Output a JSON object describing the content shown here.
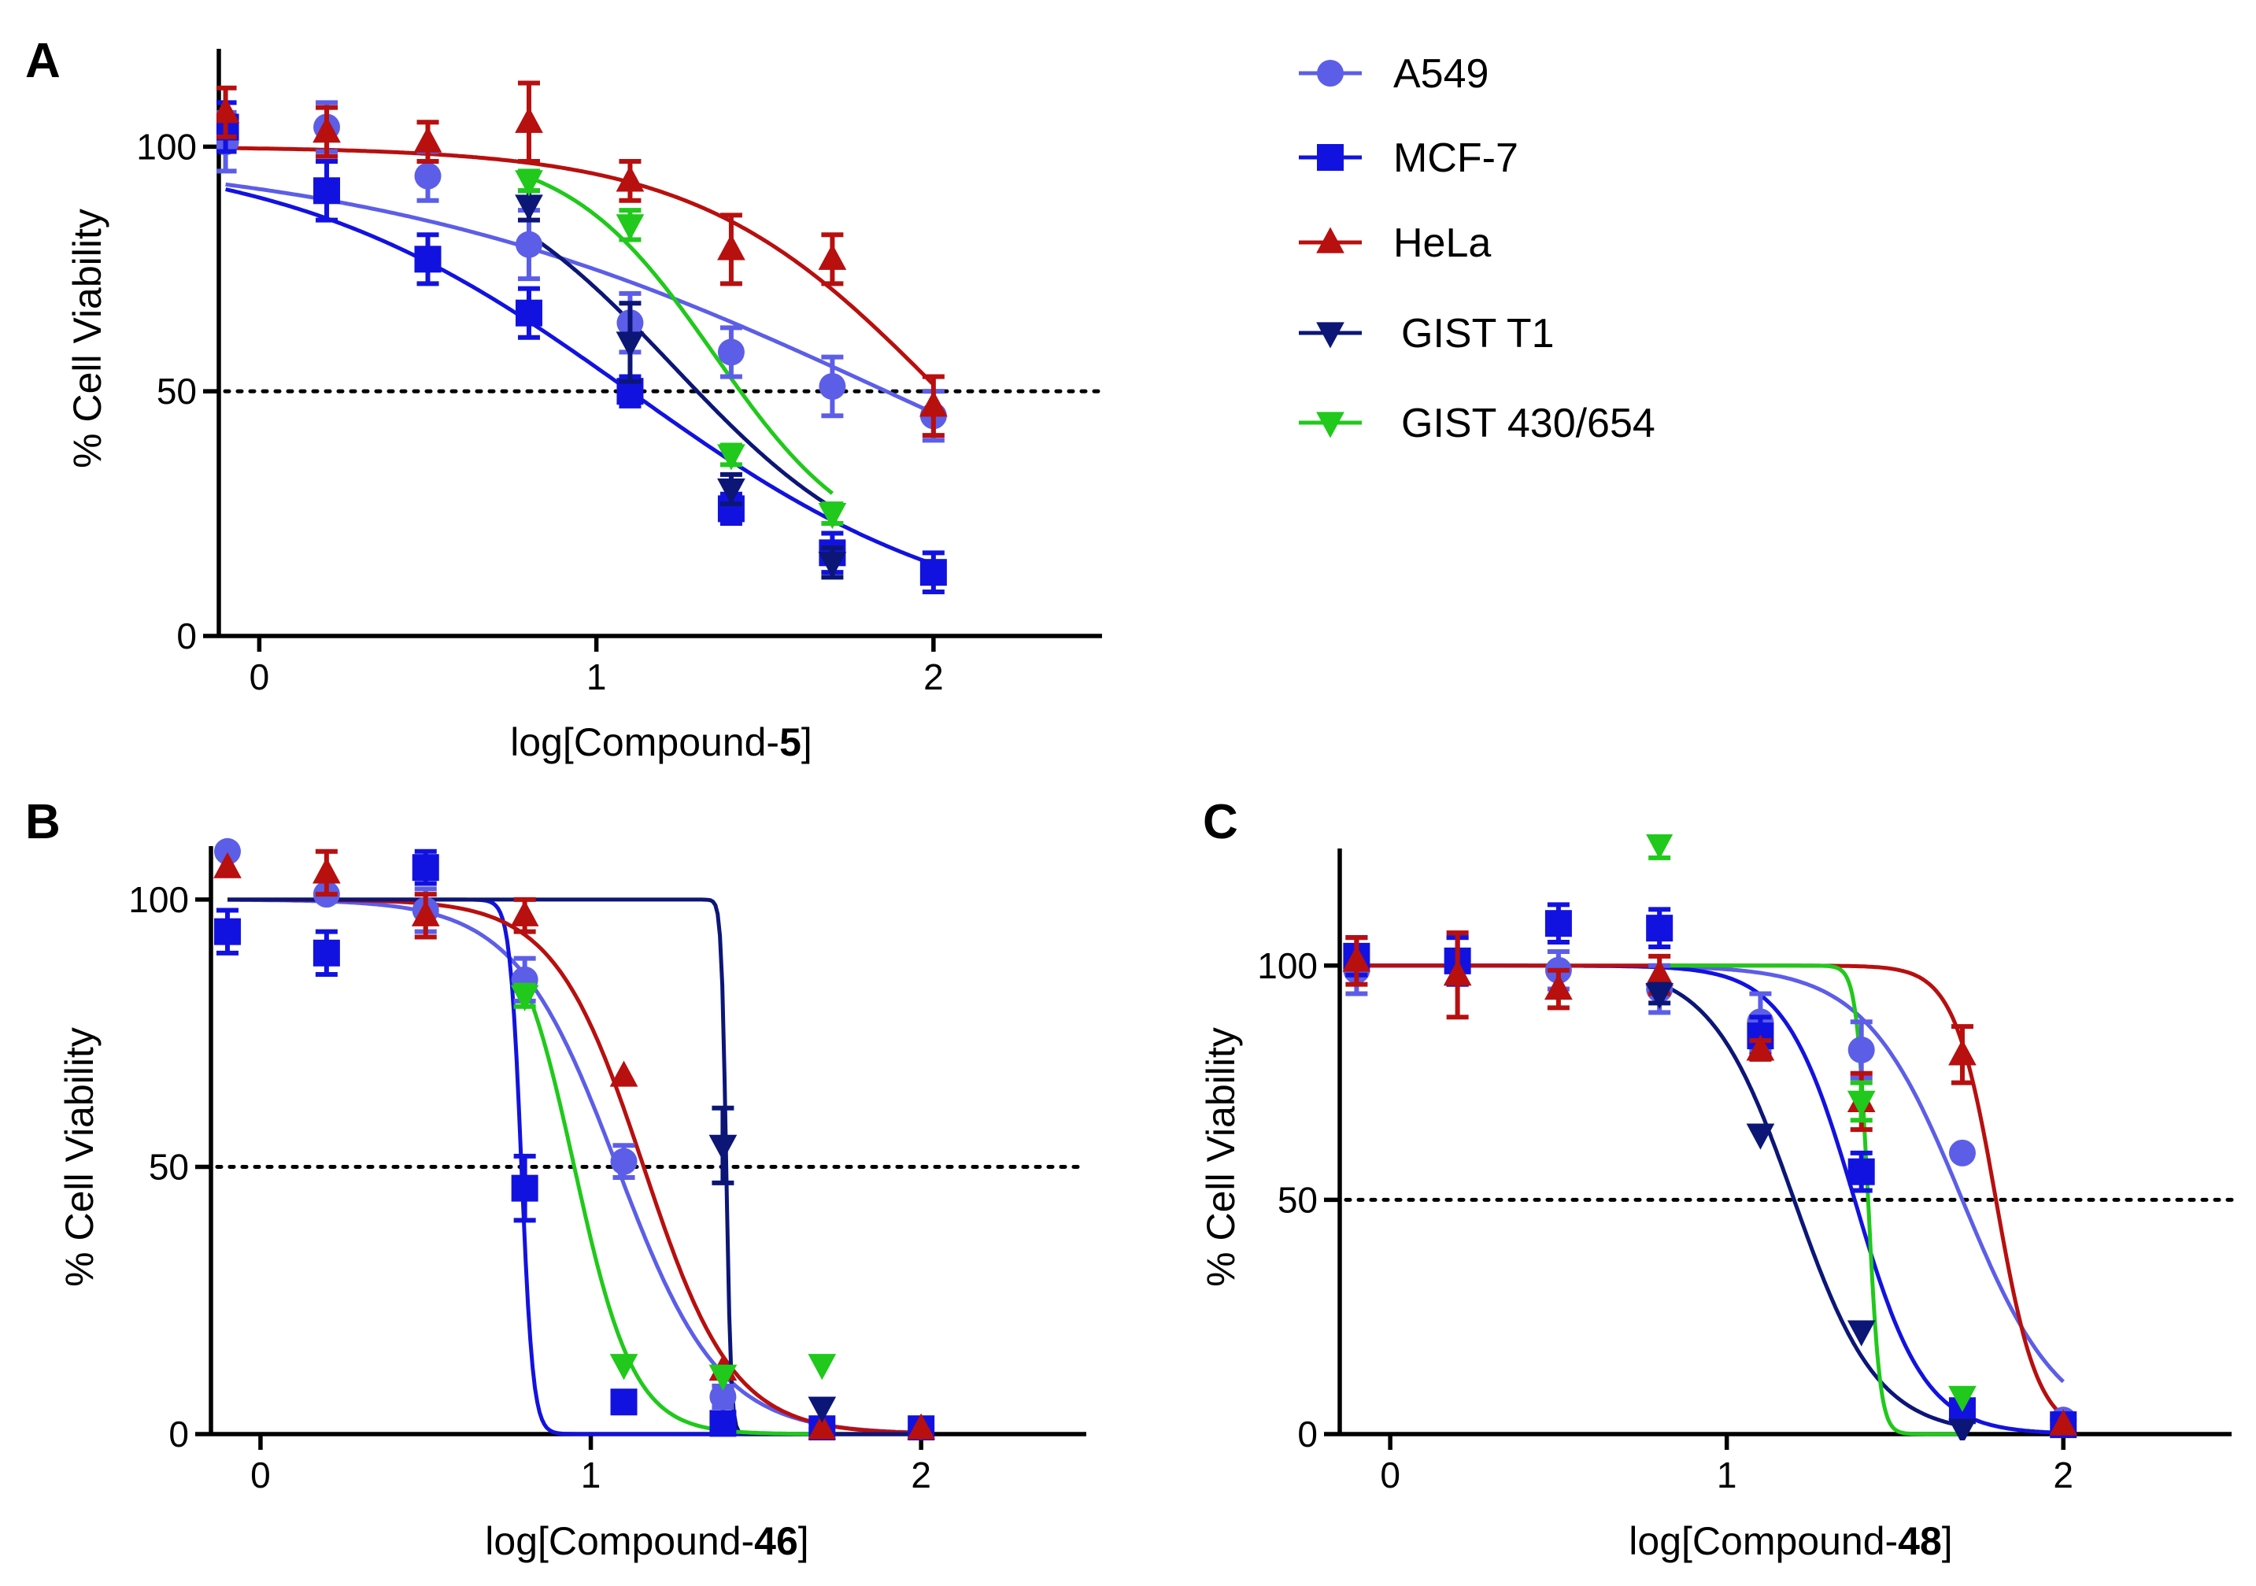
{
  "legend": {
    "entries": [
      {
        "name": "A549",
        "color": "#5c5ee8",
        "marker": "circle"
      },
      {
        "name": "MCF-7",
        "color": "#1212e0",
        "marker": "square"
      },
      {
        "name": "HeLa",
        "color": "#b80f0f",
        "marker": "triangle-up"
      },
      {
        "name": "GIST T1",
        "color": "#0c1677",
        "marker": "triangle-down"
      },
      {
        "name": "GIST 430/654",
        "color": "#20c91b",
        "marker": "triangle-down"
      }
    ]
  },
  "chart_data": [
    {
      "panel": "A",
      "type": "scatter",
      "xlabel_prefix": "log[Compound-",
      "xlabel_bold": "5",
      "xlabel_suffix": "]",
      "ylabel": "% Cell Viability",
      "xlim": [
        -0.12,
        2.5
      ],
      "ylim": [
        0,
        120
      ],
      "xticks": [
        0,
        1,
        2
      ],
      "yticks": [
        0,
        50,
        100
      ],
      "reference_line": 50,
      "series": [
        {
          "name": "A549",
          "x": [
            -0.1,
            0.2,
            0.5,
            0.8,
            1.1,
            1.4,
            1.7,
            2.0
          ],
          "y": [
            101,
            104,
            94,
            80,
            64,
            58,
            51,
            45
          ],
          "err": [
            6,
            5,
            5,
            7,
            6,
            5,
            6,
            5
          ],
          "fit": {
            "bottom": 0,
            "top": 100,
            "logIC50": 1.86,
            "hill": 0.55,
            "x_range": [
              -0.1,
              2.0
            ]
          }
        },
        {
          "name": "MCF-7",
          "x": [
            -0.1,
            0.2,
            0.5,
            0.8,
            1.1,
            1.4,
            1.7,
            2.0
          ],
          "y": [
            104,
            91,
            77,
            66,
            50,
            26,
            17,
            13
          ],
          "err": [
            5,
            6,
            5,
            5,
            3,
            3,
            4,
            4
          ],
          "fit": {
            "bottom": 0,
            "top": 100,
            "logIC50": 1.1,
            "hill": 0.85,
            "x_range": [
              -0.1,
              2.0
            ]
          }
        },
        {
          "name": "HeLa",
          "x": [
            -0.1,
            0.2,
            0.5,
            0.8,
            1.1,
            1.4,
            1.7,
            2.0
          ],
          "y": [
            107,
            103,
            101,
            105,
            93,
            79,
            77,
            47
          ],
          "err": [
            5,
            5,
            4,
            8,
            4,
            7,
            5,
            6
          ],
          "fit": {
            "bottom": 0,
            "top": 100,
            "logIC50": 2.02,
            "hill": 1.2,
            "x_range": [
              -0.1,
              2.0
            ]
          }
        },
        {
          "name": "GIST T1",
          "x": [
            0.8,
            1.1,
            1.4,
            1.7
          ],
          "y": [
            88,
            60,
            30,
            15
          ],
          "err": [
            3,
            8,
            3,
            3
          ],
          "fit": {
            "bottom": 10,
            "top": 100,
            "logIC50": 1.23,
            "hill": 1.4,
            "x_range": [
              0.8,
              1.7
            ]
          }
        },
        {
          "name": "GIST 430/654",
          "x": [
            0.8,
            1.1,
            1.4,
            1.7
          ],
          "y": [
            93,
            84,
            37,
            25
          ],
          "err": [
            2,
            3,
            2,
            2
          ],
          "fit": {
            "bottom": 15,
            "top": 100,
            "logIC50": 1.35,
            "hill": 2.0,
            "x_range": [
              0.8,
              1.7
            ]
          }
        }
      ]
    },
    {
      "panel": "B",
      "type": "scatter",
      "xlabel_prefix": "log[Compound-",
      "xlabel_bold": "46",
      "xlabel_suffix": "]",
      "ylabel": "% Cell Viability",
      "xlim": [
        -0.15,
        2.5
      ],
      "ylim": [
        0,
        110
      ],
      "xticks": [
        0,
        1,
        2
      ],
      "yticks": [
        0,
        50,
        100
      ],
      "reference_line": 50,
      "series": [
        {
          "name": "A549",
          "x": [
            -0.1,
            0.2,
            0.5,
            0.8,
            1.1,
            1.4,
            1.7,
            2.0
          ],
          "y": [
            109,
            101,
            98,
            85,
            51,
            7,
            1,
            1
          ],
          "err": [
            1,
            1,
            4,
            4,
            3,
            2,
            1,
            1
          ],
          "fit": {
            "bottom": 0,
            "top": 100,
            "logIC50": 1.08,
            "hill": 2.8,
            "x_range": [
              -0.1,
              2.0
            ]
          }
        },
        {
          "name": "MCF-7",
          "x": [
            -0.1,
            0.2,
            0.5,
            0.8,
            1.1,
            1.4,
            1.7,
            2.0
          ],
          "y": [
            94,
            90,
            106,
            46,
            6,
            2,
            1,
            1
          ],
          "err": [
            4,
            4,
            3,
            6,
            1,
            1,
            1,
            1
          ],
          "fit": {
            "bottom": 0,
            "top": 100,
            "logIC50": 0.79,
            "hill": 25,
            "x_range": [
              -0.1,
              2.0
            ]
          }
        },
        {
          "name": "HeLa",
          "x": [
            -0.1,
            0.2,
            0.5,
            0.8,
            1.1,
            1.4,
            1.7,
            2.0
          ],
          "y": [
            106,
            105,
            97,
            97,
            67,
            12,
            1,
            1
          ],
          "err": [
            1,
            4,
            4,
            3,
            1,
            1,
            1,
            1
          ],
          "fit": {
            "bottom": 0,
            "top": 100,
            "logIC50": 1.16,
            "hill": 3.2,
            "x_range": [
              -0.1,
              2.0
            ]
          }
        },
        {
          "name": "GIST T1",
          "x": [
            1.4,
            1.7
          ],
          "y": [
            54,
            5
          ],
          "err": [
            7,
            1
          ],
          "fit": {
            "bottom": 0,
            "top": 100,
            "logIC50": 1.41,
            "hill": 60,
            "x_range": [
              -0.1,
              2.0
            ]
          }
        },
        {
          "name": "GIST 430/654",
          "x": [
            0.8,
            1.1,
            1.4,
            1.7
          ],
          "y": [
            82,
            13,
            11,
            13
          ],
          "err": [
            2,
            1,
            1,
            1
          ],
          "fit": {
            "bottom": 0,
            "top": 100,
            "logIC50": 0.95,
            "hill": 4.8,
            "x_range": [
              0.8,
              1.7
            ]
          }
        }
      ]
    },
    {
      "panel": "C",
      "type": "scatter",
      "xlabel_prefix": "log[Compound-",
      "xlabel_bold": "48",
      "xlabel_suffix": "]",
      "ylabel": "% Cell Viability",
      "xlim": [
        -0.15,
        2.5
      ],
      "ylim": [
        0,
        125
      ],
      "xticks": [
        0,
        1,
        2
      ],
      "yticks": [
        0,
        50,
        100
      ],
      "reference_line": 50,
      "series": [
        {
          "name": "A549",
          "x": [
            -0.1,
            0.2,
            0.5,
            0.8,
            1.1,
            1.4,
            1.7,
            2.0
          ],
          "y": [
            99,
            101,
            99,
            95,
            88,
            82,
            60,
            3
          ],
          "err": [
            5,
            5,
            4,
            5,
            6,
            6,
            1,
            1
          ],
          "fit": {
            "bottom": 0,
            "top": 100,
            "logIC50": 1.7,
            "hill": 3.0,
            "x_range": [
              -0.1,
              2.0
            ]
          }
        },
        {
          "name": "MCF-7",
          "x": [
            -0.1,
            0.2,
            0.5,
            0.8,
            1.1,
            1.4,
            1.7,
            2.0
          ],
          "y": [
            102,
            101,
            109,
            108,
            85,
            56,
            5,
            2
          ],
          "err": [
            4,
            5,
            4,
            4,
            4,
            4,
            1,
            1
          ],
          "fit": {
            "bottom": 0,
            "top": 100,
            "logIC50": 1.38,
            "hill": 4.2,
            "x_range": [
              -0.1,
              2.0
            ]
          }
        },
        {
          "name": "HeLa",
          "x": [
            -0.1,
            0.2,
            0.5,
            0.8,
            1.1,
            1.4,
            1.7,
            2.0
          ],
          "y": [
            101,
            98,
            95,
            98,
            82,
            71,
            81,
            2
          ],
          "err": [
            5,
            9,
            4,
            4,
            2,
            6,
            6,
            1
          ],
          "fit": {
            "bottom": 0,
            "top": 100,
            "logIC50": 1.8,
            "hill": 7.0,
            "x_range": [
              -0.1,
              2.0
            ]
          }
        },
        {
          "name": "GIST T1",
          "x": [
            0.8,
            1.1,
            1.4,
            1.7
          ],
          "y": [
            94,
            64,
            22,
            1
          ],
          "err": [
            2,
            1,
            1,
            1
          ],
          "fit": {
            "bottom": 0,
            "top": 100,
            "logIC50": 1.2,
            "hill": 3.5,
            "x_range": [
              0.8,
              1.7
            ]
          }
        },
        {
          "name": "GIST 430/654",
          "x": [
            0.8,
            1.4,
            1.7
          ],
          "y": [
            126,
            71,
            8
          ],
          "err": [
            3,
            4,
            1
          ],
          "fit": {
            "bottom": 0,
            "top": 100,
            "logIC50": 1.42,
            "hill": 25,
            "x_range": [
              0.8,
              1.7
            ]
          }
        }
      ]
    }
  ]
}
